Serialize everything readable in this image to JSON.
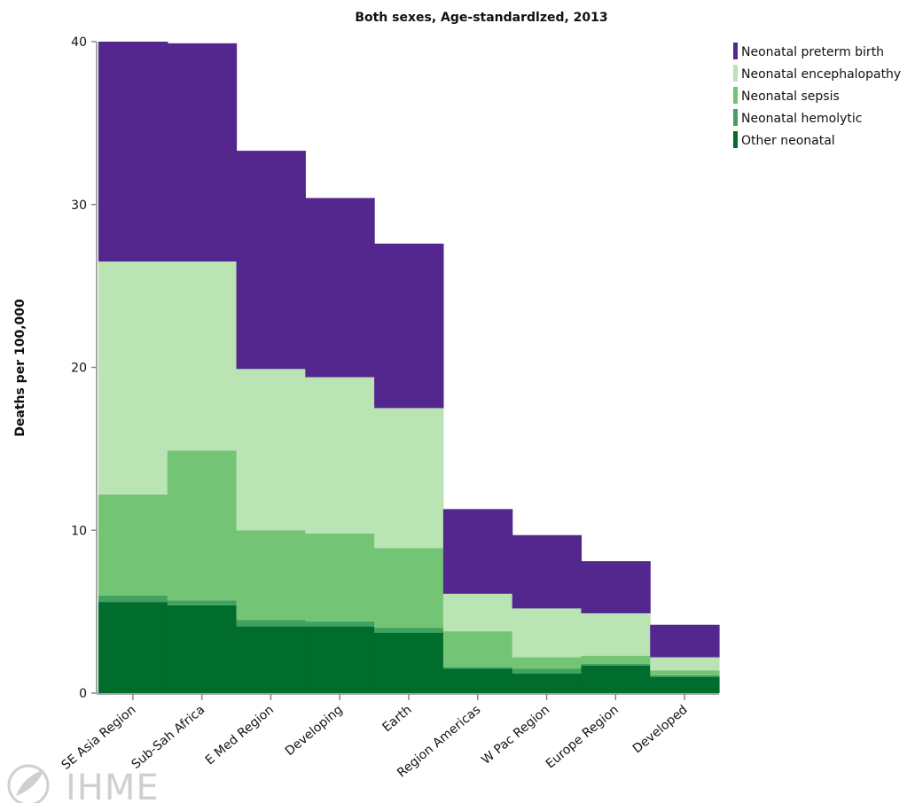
{
  "chart_data": {
    "type": "bar",
    "stacked": true,
    "title": "Both sexes, Age-standardlzed, 2013",
    "ylabel": "Deaths per 100,000",
    "xlabel": "",
    "ylim": [
      0,
      40
    ],
    "yticks": [
      0,
      10,
      20,
      30,
      40
    ],
    "legend_position": "top-right",
    "categories": [
      "SE Asia Region",
      "Sub-Sah Africa",
      "E Med Region",
      "Developing",
      "Earth",
      "Region Americas",
      "W Pac Region",
      "Europe Region",
      "Developed"
    ],
    "series": [
      {
        "name": "Other neonatal",
        "color": "#006d2c",
        "values": [
          5.6,
          5.4,
          4.1,
          4.1,
          3.7,
          1.5,
          1.2,
          1.7,
          1.0
        ]
      },
      {
        "name": "Neonatal hemolytic",
        "color": "#3fa35f",
        "values": [
          0.4,
          0.3,
          0.4,
          0.3,
          0.3,
          0.1,
          0.3,
          0.1,
          0.1
        ]
      },
      {
        "name": "Neonatal sepsis",
        "color": "#74c476",
        "values": [
          6.2,
          9.2,
          5.5,
          5.4,
          4.9,
          2.2,
          0.7,
          0.5,
          0.3
        ]
      },
      {
        "name": "Neonatal encephalopathy",
        "color": "#bae4b3",
        "values": [
          14.3,
          11.6,
          9.9,
          9.6,
          8.6,
          2.3,
          3.0,
          2.6,
          0.8
        ]
      },
      {
        "name": "Neonatal preterm birth",
        "color": "#54278f",
        "values": [
          13.5,
          13.4,
          13.4,
          11.0,
          10.1,
          5.2,
          4.5,
          3.2,
          2.0
        ]
      }
    ],
    "legend_order": [
      "Neonatal preterm birth",
      "Neonatal encephalopathy",
      "Neonatal sepsis",
      "Neonatal hemolytic",
      "Other neonatal"
    ]
  },
  "watermark": {
    "text": "IHME"
  }
}
